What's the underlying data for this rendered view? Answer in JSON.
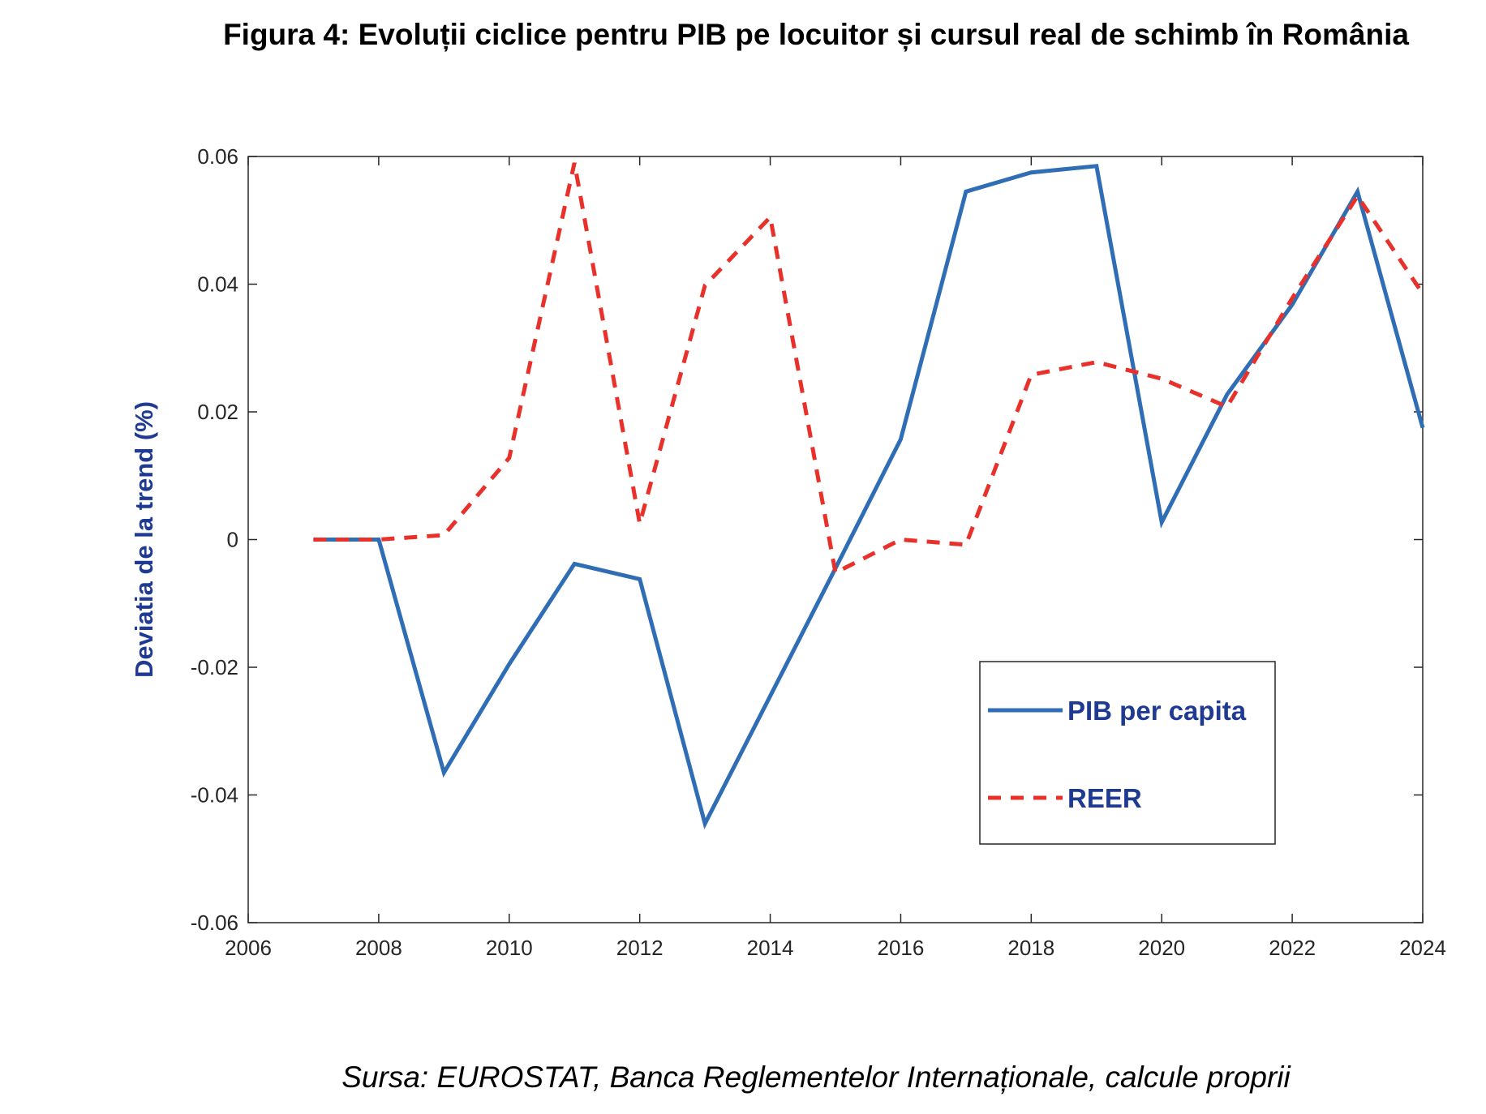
{
  "figure": {
    "title": "Figura 4: Evoluții ciclice pentru PIB pe locuitor și cursul real de schimb în România",
    "source": "Sursa: EUROSTAT, Banca Reglementelor Internaționale, calcule proprii"
  },
  "chart_data": {
    "type": "line",
    "title": "",
    "xlabel": "",
    "ylabel": "Deviatia de la trend (%)",
    "xlim": [
      2006,
      2024
    ],
    "ylim": [
      -0.06,
      0.06
    ],
    "x_ticks": [
      "2006",
      "2008",
      "2010",
      "2012",
      "2014",
      "2016",
      "2018",
      "2020",
      "2022",
      "2024"
    ],
    "y_ticks": [
      "0.06",
      "0.04",
      "0.02",
      "0",
      "-0.02",
      "-0.04",
      "-0.06"
    ],
    "grid": false,
    "legend_position": "bottom-right",
    "x": [
      2007,
      2008,
      2009,
      2010,
      2011,
      2012,
      2013,
      2014,
      2015,
      2016,
      2017,
      2018,
      2019,
      2020,
      2021,
      2022,
      2023,
      2024
    ],
    "series": [
      {
        "name": "PIB per capita",
        "style": "solid",
        "color": "#2f6db5",
        "values": [
          0.0,
          0.0,
          -0.0365,
          -0.0195,
          -0.0038,
          -0.0062,
          -0.0445,
          -0.0245,
          -0.0045,
          0.0157,
          0.0545,
          0.0575,
          0.0585,
          0.0027,
          0.0227,
          0.0368,
          0.0545,
          0.0175
        ]
      },
      {
        "name": "REER",
        "style": "dashed",
        "color": "#e8312a",
        "values": [
          0.0,
          0.0,
          0.0007,
          0.0128,
          0.059,
          0.0025,
          0.0398,
          0.0505,
          -0.0052,
          0.0,
          -0.0008,
          0.0258,
          0.0278,
          0.0252,
          0.0208,
          0.0378,
          0.0538,
          0.0385
        ]
      }
    ]
  }
}
